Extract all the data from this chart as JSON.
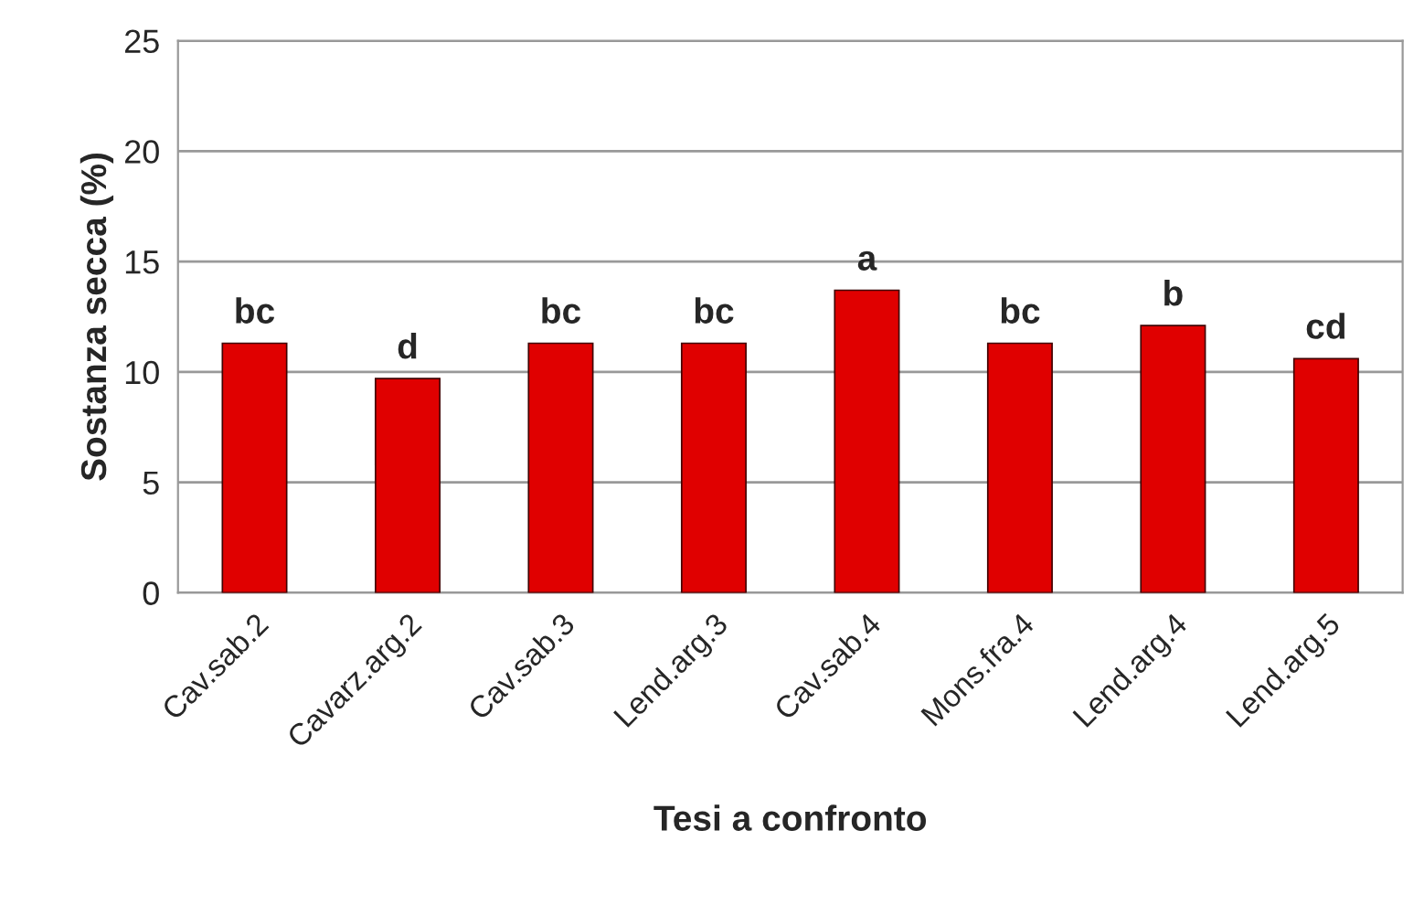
{
  "chart_data": {
    "type": "bar",
    "xlabel": "Tesi a confronto",
    "ylabel": "Sostanza secca (%)",
    "categories": [
      "Cav.sab.2",
      "Cavarz.arg.2",
      "Cav.sab.3",
      "Lend.arg.3",
      "Cav.sab.4",
      "Mons.fra.4",
      "Lend.arg.4",
      "Lend.arg.5"
    ],
    "values": [
      11.3,
      9.7,
      11.3,
      11.3,
      13.7,
      11.3,
      12.1,
      10.6
    ],
    "color": "#e00000",
    "ylim": [
      0,
      25
    ],
    "yticks": [
      0,
      5,
      10,
      15,
      20,
      25
    ],
    "grid": "y",
    "legend": false,
    "annotations": [
      {
        "text": "bc",
        "x": "Cav.sab.2",
        "y": 11.3
      },
      {
        "text": "d",
        "x": "Cavarz.arg.2",
        "y": 9.7
      },
      {
        "text": "bc",
        "x": "Cav.sab.3",
        "y": 11.3
      },
      {
        "text": "bc",
        "x": "Lend.arg.3",
        "y": 11.3
      },
      {
        "text": "a",
        "x": "Cav.sab.4",
        "y": 13.7
      },
      {
        "text": "bc",
        "x": "Mons.fra.4",
        "y": 11.3
      },
      {
        "text": "b",
        "x": "Lend.arg.4",
        "y": 12.1
      },
      {
        "text": "cd",
        "x": "Lend.arg.5",
        "y": 10.6
      }
    ]
  }
}
